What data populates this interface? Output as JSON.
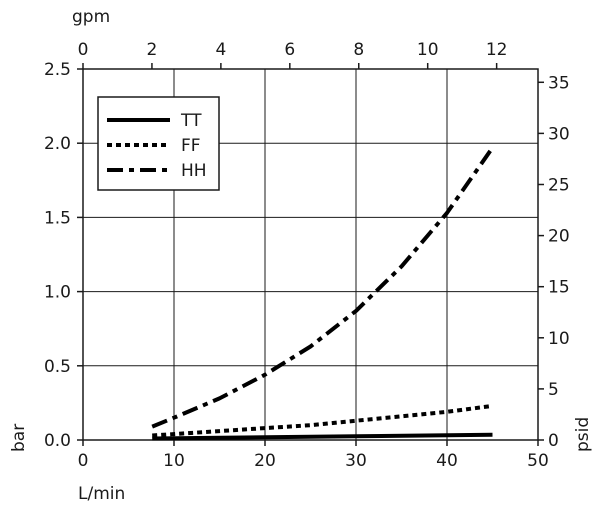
{
  "chart_data": {
    "type": "line",
    "x_bottom": {
      "label": "L/min",
      "range": [
        0,
        50
      ],
      "ticks": [
        0,
        10,
        20,
        30,
        40,
        50
      ]
    },
    "x_top": {
      "label": "gpm",
      "range": [
        0,
        13.2
      ],
      "ticks": [
        0,
        2,
        4,
        6,
        8,
        10,
        12
      ]
    },
    "y_left": {
      "label": "bar",
      "range": [
        0,
        2.5
      ],
      "ticks": [
        "0.0",
        "0.5",
        "1.0",
        "1.5",
        "2.0",
        "2.5"
      ]
    },
    "y_right": {
      "label": "psid",
      "range": [
        0,
        36.3
      ],
      "ticks": [
        0,
        5,
        10,
        15,
        20,
        25,
        30,
        35
      ]
    },
    "grid": true,
    "legend_position": "top-left",
    "series": [
      {
        "name": "TT",
        "dash": "solid",
        "x": [
          7.6,
          20,
          30,
          45
        ],
        "y": [
          0.01,
          0.018,
          0.025,
          0.035
        ]
      },
      {
        "name": "FF",
        "dash": "dotted",
        "x": [
          7.6,
          15,
          20,
          25,
          30,
          35,
          40,
          45
        ],
        "y": [
          0.03,
          0.06,
          0.08,
          0.1,
          0.13,
          0.16,
          0.19,
          0.23
        ]
      },
      {
        "name": "HH",
        "dash": "dashdot",
        "x": [
          7.6,
          10,
          15,
          20,
          25,
          30,
          35,
          40,
          45
        ],
        "y": [
          0.09,
          0.15,
          0.28,
          0.44,
          0.63,
          0.87,
          1.17,
          1.53,
          1.97
        ]
      }
    ]
  }
}
